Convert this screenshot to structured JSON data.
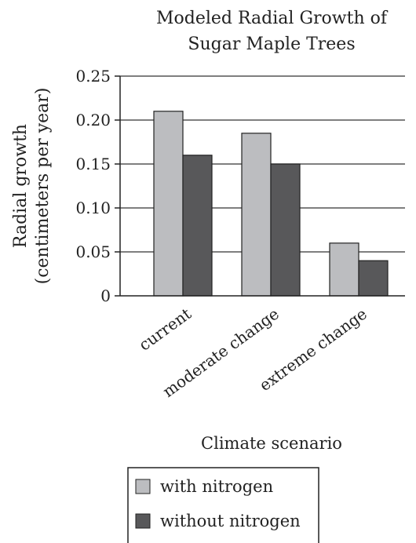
{
  "chart_data": {
    "type": "bar",
    "title_lines": [
      "Modeled Radial Growth of",
      "Sugar Maple Trees"
    ],
    "ylabel_lines": [
      "Radial growth",
      "(centimeters per year)"
    ],
    "xlabel": "Climate scenario",
    "categories": [
      "current",
      "moderate change",
      "extreme change"
    ],
    "series": [
      {
        "name": "with nitrogen",
        "values": [
          0.21,
          0.185,
          0.06
        ],
        "color": "#bcbdc0"
      },
      {
        "name": "without nitrogen",
        "values": [
          0.16,
          0.15,
          0.04
        ],
        "color": "#58585a"
      }
    ],
    "ylim": [
      0,
      0.25
    ],
    "yticks": [
      0,
      0.05,
      0.1,
      0.15,
      0.2,
      0.25
    ],
    "ytick_labels": [
      "0",
      "0.05",
      "0.10",
      "0.15",
      "0.20",
      "0.25"
    ],
    "grid": true,
    "legend_position": "bottom-left"
  }
}
